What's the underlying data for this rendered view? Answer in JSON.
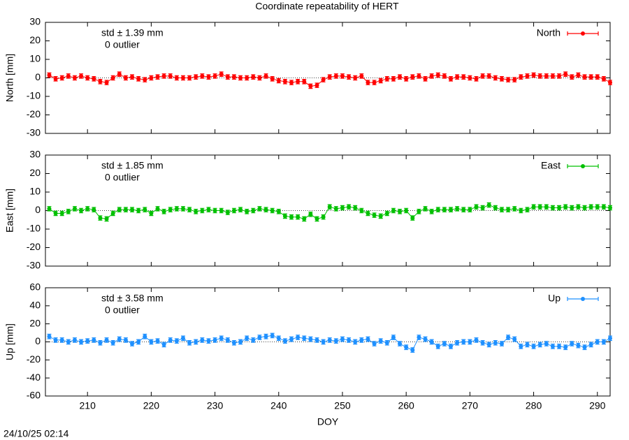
{
  "title": "Coordinate repeatability of HERT",
  "timestamp": "24/10/25 02:14",
  "chart_data": [
    {
      "type": "line",
      "ylabel": "North [mm]",
      "annotation": "std ± 1.39 mm",
      "note": "0 outlier",
      "xlim": [
        203.4,
        292
      ],
      "ylim": [
        -30,
        30
      ],
      "yticks": [
        -30,
        -20,
        -10,
        0,
        10,
        20,
        30
      ],
      "legend": "top-right",
      "x": [
        204,
        205,
        206,
        207,
        208,
        209,
        210,
        211,
        212,
        213,
        214,
        215,
        216,
        217,
        218,
        219,
        220,
        221,
        222,
        223,
        224,
        225,
        226,
        227,
        228,
        229,
        230,
        231,
        232,
        233,
        234,
        235,
        236,
        237,
        238,
        239,
        240,
        241,
        242,
        243,
        244,
        245,
        246,
        247,
        248,
        249,
        250,
        251,
        252,
        253,
        254,
        255,
        256,
        257,
        258,
        259,
        260,
        261,
        262,
        263,
        264,
        265,
        266,
        267,
        268,
        269,
        270,
        271,
        272,
        273,
        274,
        275,
        276,
        277,
        278,
        279,
        280,
        281,
        282,
        283,
        284,
        285,
        286,
        287,
        288,
        289,
        290,
        291,
        292
      ],
      "series": [
        {
          "name": "North",
          "color": "#ff0000",
          "error": 1.2,
          "values": [
            1.5,
            -0.5,
            0,
            1,
            0,
            1,
            0,
            -0.5,
            -2,
            -2.5,
            0,
            2,
            0,
            0.5,
            -0.5,
            -1,
            0,
            0.5,
            1,
            1,
            0,
            0,
            0,
            0.5,
            1,
            0.5,
            1,
            2,
            0.5,
            0.5,
            0,
            0,
            0.5,
            0,
            1,
            -0.5,
            -1.5,
            -2,
            -2.5,
            -2,
            -2,
            -4.5,
            -4,
            -1,
            0.5,
            1,
            1,
            0.5,
            0,
            1,
            -2.5,
            -2.5,
            -1.5,
            -0.5,
            -0.5,
            0.5,
            -0.5,
            0.5,
            1,
            -0.5,
            1,
            1.5,
            1,
            -0.5,
            0.5,
            0.5,
            0,
            -0.5,
            1,
            1,
            0,
            -0.5,
            -1,
            -1,
            0.5,
            1,
            1.5,
            1,
            1,
            1,
            1,
            2,
            0.5,
            1.5,
            0.5,
            0.5,
            0.5,
            -0.5,
            -2.5
          ]
        }
      ]
    },
    {
      "type": "line",
      "ylabel": "East [mm]",
      "annotation": "std ± 1.85 mm",
      "note": "0 outlier",
      "xlim": [
        203.4,
        292
      ],
      "ylim": [
        -30,
        30
      ],
      "yticks": [
        -30,
        -20,
        -10,
        0,
        10,
        20,
        30
      ],
      "legend": "top-right",
      "x": [
        204,
        205,
        206,
        207,
        208,
        209,
        210,
        211,
        212,
        213,
        214,
        215,
        216,
        217,
        218,
        219,
        220,
        221,
        222,
        223,
        224,
        225,
        226,
        227,
        228,
        229,
        230,
        231,
        232,
        233,
        234,
        235,
        236,
        237,
        238,
        239,
        240,
        241,
        242,
        243,
        244,
        245,
        246,
        247,
        248,
        249,
        250,
        251,
        252,
        253,
        254,
        255,
        256,
        257,
        258,
        259,
        260,
        261,
        262,
        263,
        264,
        265,
        266,
        267,
        268,
        269,
        270,
        271,
        272,
        273,
        274,
        275,
        276,
        277,
        278,
        279,
        280,
        281,
        282,
        283,
        284,
        285,
        286,
        287,
        288,
        289,
        290,
        291,
        292
      ],
      "series": [
        {
          "name": "East",
          "color": "#00c000",
          "error": 1.2,
          "values": [
            1,
            -1.5,
            -1.5,
            -0.5,
            1,
            0,
            1,
            0.5,
            -4,
            -4.5,
            -1.5,
            0.5,
            0.5,
            0.5,
            0,
            0.5,
            -1.5,
            1,
            -0.5,
            0.5,
            1,
            1,
            0.5,
            -0.5,
            0,
            0.5,
            0,
            0,
            -1,
            0,
            0.5,
            -0.5,
            0,
            1,
            0.5,
            0,
            -0.5,
            -3,
            -3.5,
            -3.5,
            -4.5,
            -2,
            -4.5,
            -3.5,
            2,
            1,
            1.5,
            2,
            1.5,
            0,
            -1.5,
            -2.5,
            -3,
            -1.5,
            0,
            -0.5,
            0,
            -4,
            -0.5,
            1,
            -0.5,
            0.5,
            0.5,
            0.5,
            1,
            0.5,
            0.5,
            2,
            1.5,
            3,
            1.5,
            0.5,
            0.5,
            1,
            0,
            0.5,
            2,
            2,
            2,
            1.5,
            1.5,
            2,
            1.5,
            2,
            1.5,
            2,
            2,
            2,
            1.5
          ]
        }
      ]
    },
    {
      "type": "line",
      "ylabel": "Up [mm]",
      "xlabel": "DOY",
      "annotation": "std ± 3.58 mm",
      "note": "0 outlier",
      "xlim": [
        203.4,
        292
      ],
      "ylim": [
        -60,
        60
      ],
      "yticks": [
        -60,
        -40,
        -20,
        0,
        20,
        40,
        60
      ],
      "xticks": [
        210,
        220,
        230,
        240,
        250,
        260,
        270,
        280,
        290
      ],
      "legend": "top-right",
      "x": [
        204,
        205,
        206,
        207,
        208,
        209,
        210,
        211,
        212,
        213,
        214,
        215,
        216,
        217,
        218,
        219,
        220,
        221,
        222,
        223,
        224,
        225,
        226,
        227,
        228,
        229,
        230,
        231,
        232,
        233,
        234,
        235,
        236,
        237,
        238,
        239,
        240,
        241,
        242,
        243,
        244,
        245,
        246,
        247,
        248,
        249,
        250,
        251,
        252,
        253,
        254,
        255,
        256,
        257,
        258,
        259,
        260,
        261,
        262,
        263,
        264,
        265,
        266,
        267,
        268,
        269,
        270,
        271,
        272,
        273,
        274,
        275,
        276,
        277,
        278,
        279,
        280,
        281,
        282,
        283,
        284,
        285,
        286,
        287,
        288,
        289,
        290,
        291,
        292
      ],
      "series": [
        {
          "name": "Up",
          "color": "#1e90ff",
          "error": 2.5,
          "values": [
            6,
            2,
            2,
            0,
            2,
            0,
            1,
            2,
            -1,
            2,
            -1,
            3,
            2,
            -2,
            0,
            6,
            0,
            1,
            -3,
            2,
            1,
            4,
            -1,
            0,
            2,
            1,
            2,
            4,
            2,
            -1,
            0,
            4,
            2,
            5,
            6,
            7,
            4,
            1,
            3,
            5,
            4,
            3,
            2,
            0,
            2,
            1,
            3,
            2,
            0,
            2,
            3,
            -2,
            1,
            -1,
            5,
            -2,
            -6,
            -9,
            5,
            3,
            0,
            -5,
            -2,
            -5,
            -1,
            0,
            0,
            2,
            -1,
            -3,
            -1,
            -2,
            5,
            3,
            -5,
            -3,
            -5,
            -3,
            -2,
            -5,
            -5,
            -6,
            -2,
            -4,
            -6,
            -3,
            0,
            0,
            4
          ]
        }
      ]
    }
  ]
}
